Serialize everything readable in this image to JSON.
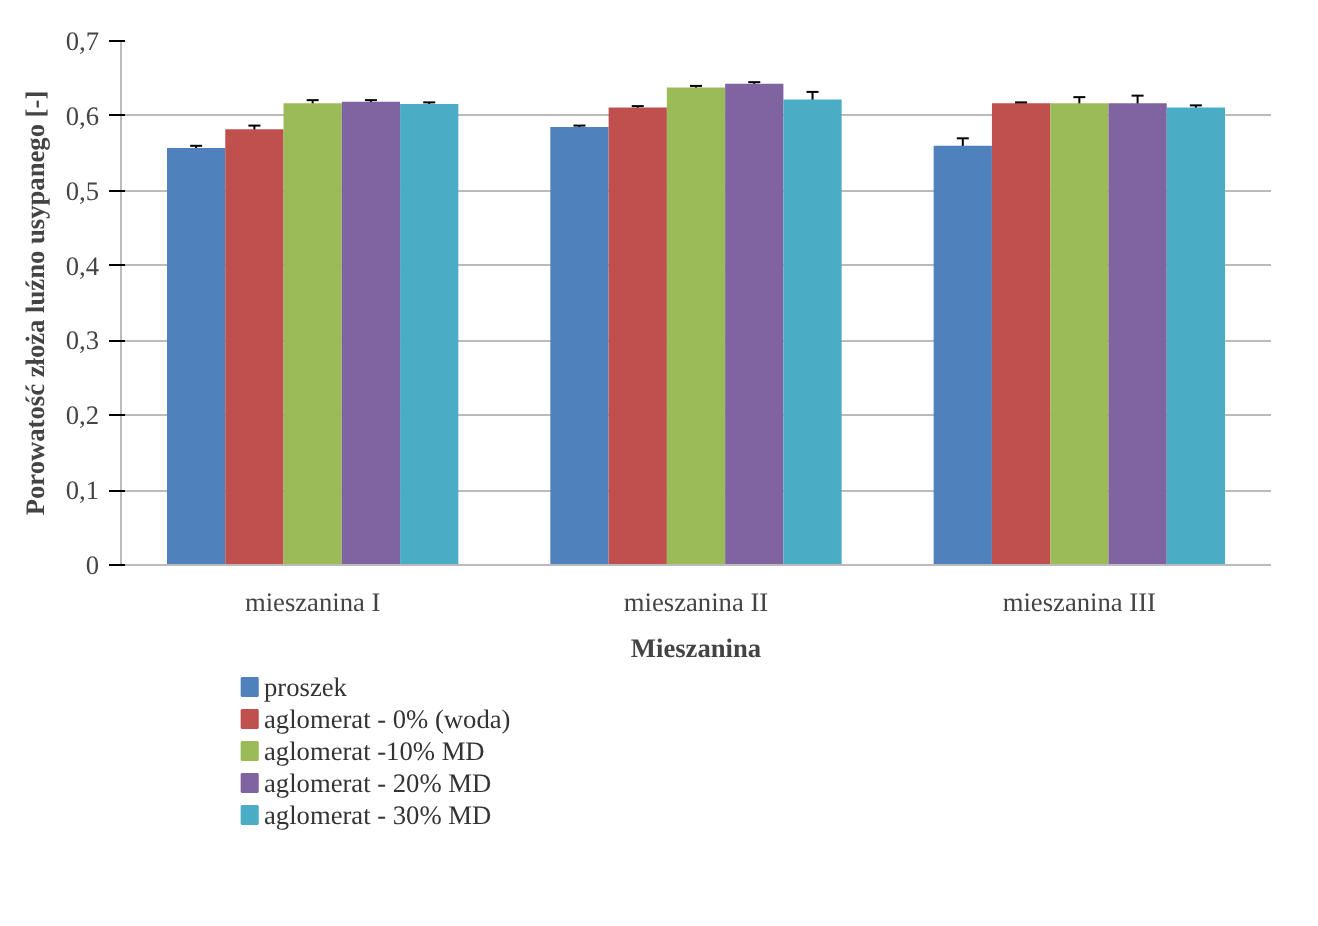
{
  "chart_data": {
    "type": "bar",
    "xlabel": "Mieszanina",
    "ylabel": "Porowatość złoża luźno usypanego [-]",
    "categories": [
      "mieszanina I",
      "mieszanina II",
      "mieszanina III"
    ],
    "series": [
      {
        "name": "proszek",
        "color": "#4f81bd",
        "values": [
          0.557,
          0.585,
          0.56
        ],
        "errors": [
          0.003,
          0.002,
          0.01
        ]
      },
      {
        "name": "aglomerat - 0% (woda)",
        "color": "#c0504d",
        "values": [
          0.582,
          0.611,
          0.617
        ],
        "errors": [
          0.005,
          0.002,
          0.001
        ]
      },
      {
        "name": "aglomerat -10% MD",
        "color": "#9bbb59",
        "values": [
          0.617,
          0.638,
          0.617
        ],
        "errors": [
          0.004,
          0.002,
          0.008
        ]
      },
      {
        "name": "aglomerat - 20% MD",
        "color": "#8064a2",
        "values": [
          0.619,
          0.643,
          0.617
        ],
        "errors": [
          0.002,
          0.002,
          0.01
        ]
      },
      {
        "name": "aglomerat - 30% MD",
        "color": "#4bacc6",
        "values": [
          0.616,
          0.622,
          0.611
        ],
        "errors": [
          0.002,
          0.01,
          0.003
        ]
      }
    ],
    "ylim": [
      0,
      0.7
    ],
    "yticks": [
      {
        "value": 0,
        "label": "0"
      },
      {
        "value": 0.1,
        "label": "0,1"
      },
      {
        "value": 0.2,
        "label": "0,2"
      },
      {
        "value": 0.3,
        "label": "0,3"
      },
      {
        "value": 0.4,
        "label": "0,4"
      },
      {
        "value": 0.5,
        "label": "0,5"
      },
      {
        "value": 0.6,
        "label": "0,6"
      },
      {
        "value": 0.7,
        "label": "0,7"
      }
    ],
    "grid": "y",
    "legend": "bottom left"
  }
}
